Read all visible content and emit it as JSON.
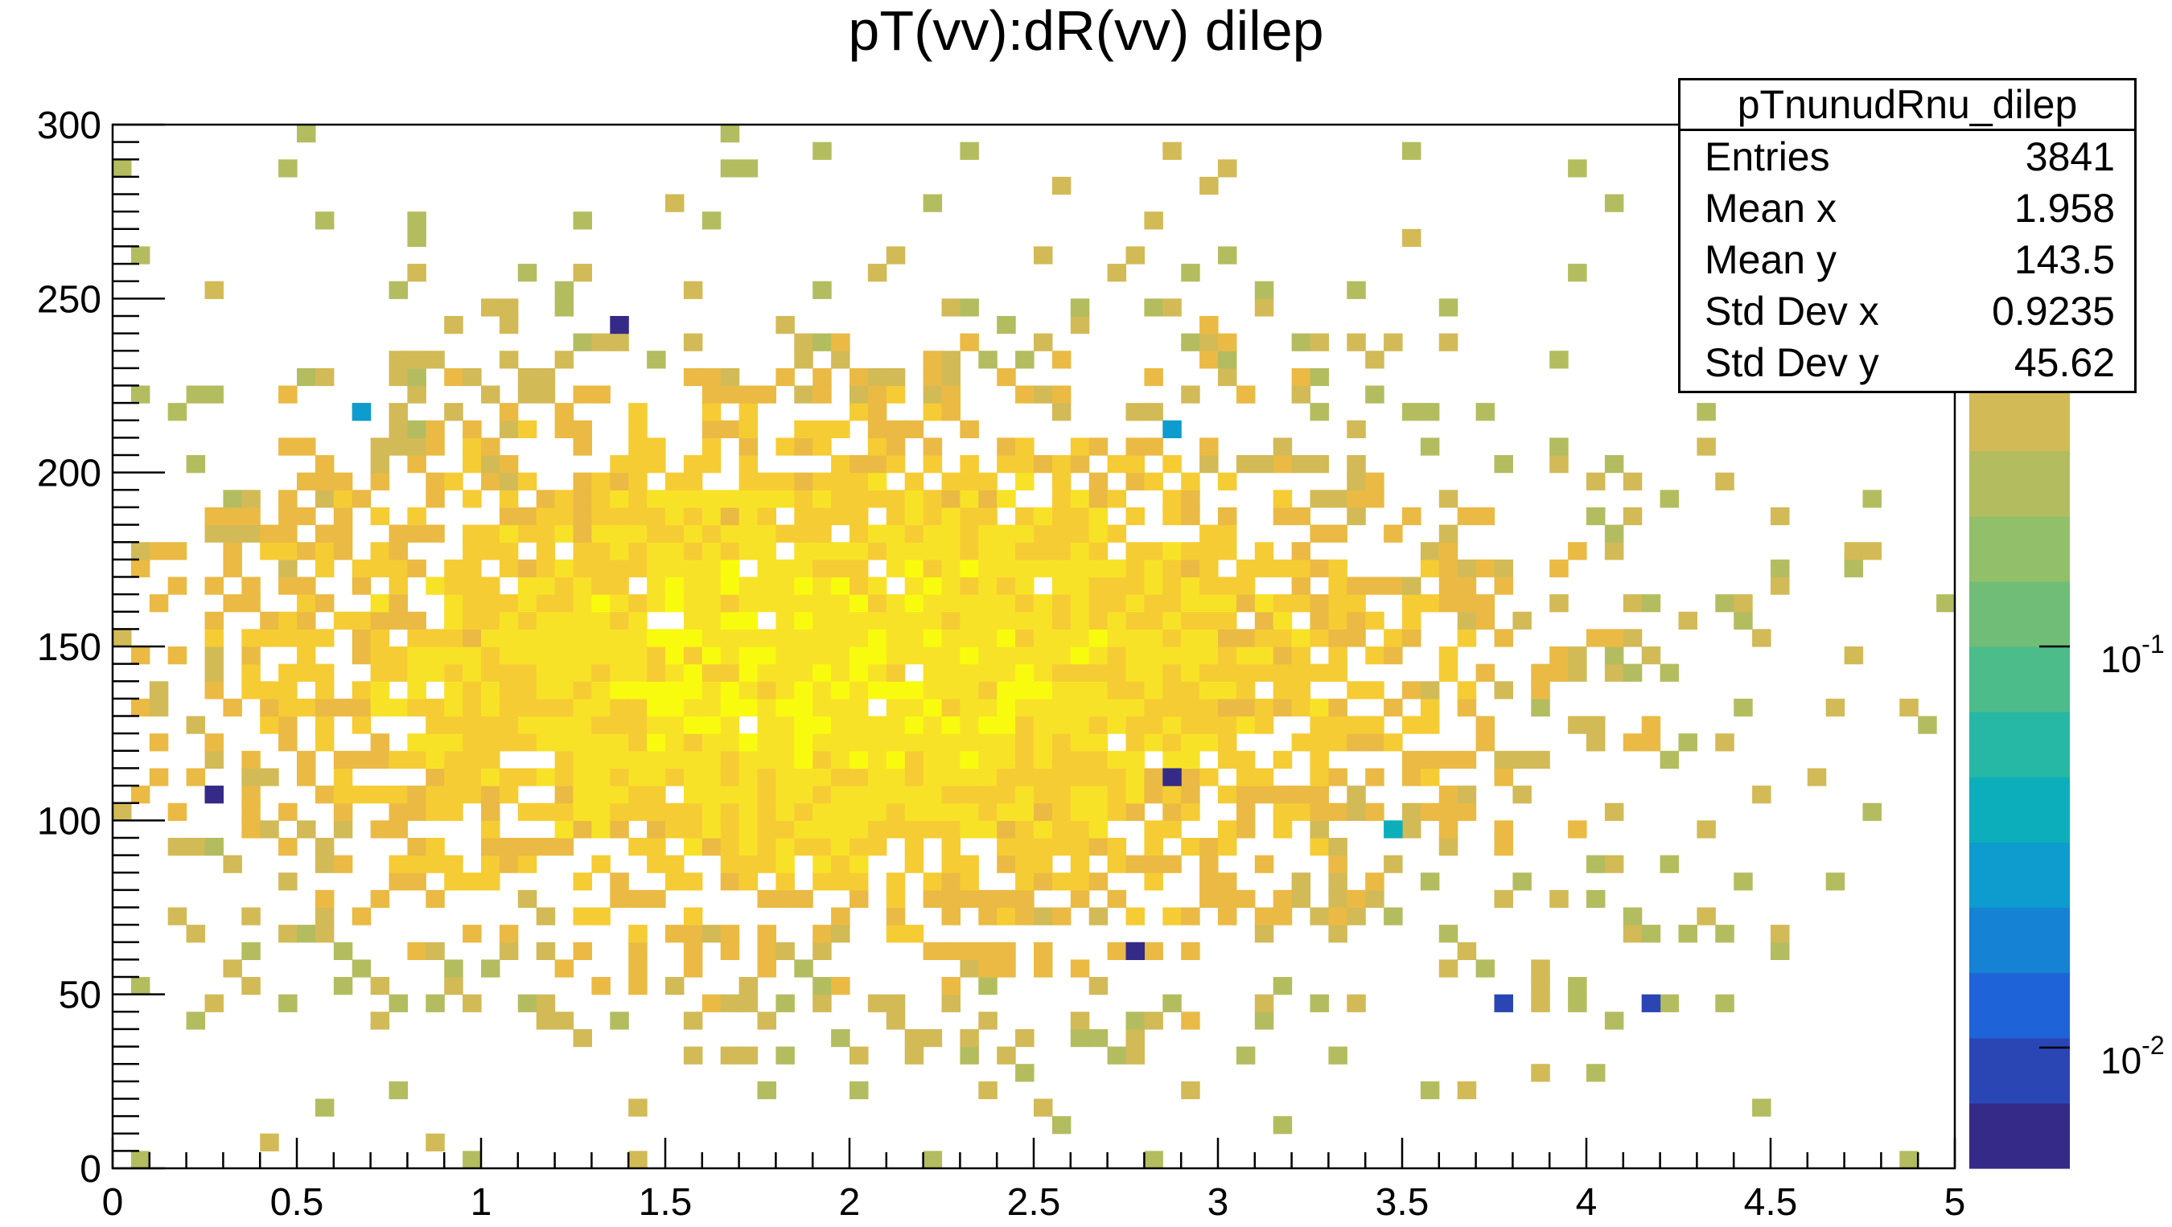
{
  "chart_data": {
    "type": "heatmap",
    "title": "pT(vv):dR(vv) dilep",
    "xlabel": "",
    "ylabel": "",
    "xlim": [
      0,
      5
    ],
    "ylim": [
      0,
      300
    ],
    "x_bins": 100,
    "y_bins": 60,
    "x_ticks": [
      "0",
      "0.5",
      "1",
      "1.5",
      "2",
      "2.5",
      "3",
      "3.5",
      "4",
      "4.5",
      "5"
    ],
    "y_ticks": [
      "0",
      "50",
      "100",
      "150",
      "200",
      "250",
      "300"
    ],
    "z_scale": "log",
    "colorbar_ticks": [
      {
        "exp": "-1",
        "label": "10",
        "value": 0.1
      },
      {
        "exp": "-2",
        "label": "10",
        "value": 0.01
      }
    ],
    "colorbar_range": [
      0.005,
      2.0
    ],
    "distribution": {
      "mean_x": 1.958,
      "mean_y": 143.5,
      "std_x": 0.9235,
      "std_y": 45.62,
      "entries": 3841
    },
    "outlier_cells": [
      {
        "x": 0.25,
        "y": 108,
        "z": 0.006
      },
      {
        "x": 1.35,
        "y": 243,
        "z": 0.006
      },
      {
        "x": 2.85,
        "y": 113,
        "z": 0.006
      },
      {
        "x": 2.75,
        "y": 63,
        "z": 0.007
      },
      {
        "x": 3.75,
        "y": 48,
        "z": 0.008
      },
      {
        "x": 4.15,
        "y": 48,
        "z": 0.01
      },
      {
        "x": 0.65,
        "y": 218,
        "z": 0.03
      },
      {
        "x": 2.85,
        "y": 213,
        "z": 0.03
      },
      {
        "x": 3.45,
        "y": 98,
        "z": 0.04
      }
    ]
  },
  "stats": {
    "name": "pTnunudRnu_dilep",
    "rows": [
      {
        "label": "Entries",
        "value": "3841"
      },
      {
        "label": "Mean x",
        "value": "1.958"
      },
      {
        "label": "Mean y",
        "value": "143.5"
      },
      {
        "label": "Std Dev x",
        "value": "0.9235"
      },
      {
        "label": "Std Dev y",
        "value": "45.62"
      }
    ]
  },
  "palette": [
    "#352a87",
    "#2a46b5",
    "#1f63d8",
    "#1582d4",
    "#0d9ccd",
    "#0caebb",
    "#27b7a5",
    "#4cbc8b",
    "#6fbd77",
    "#92bf6a",
    "#b3bd60",
    "#d2ba57",
    "#eaba44",
    "#f6cc34",
    "#f8e228",
    "#f9fb0e"
  ]
}
